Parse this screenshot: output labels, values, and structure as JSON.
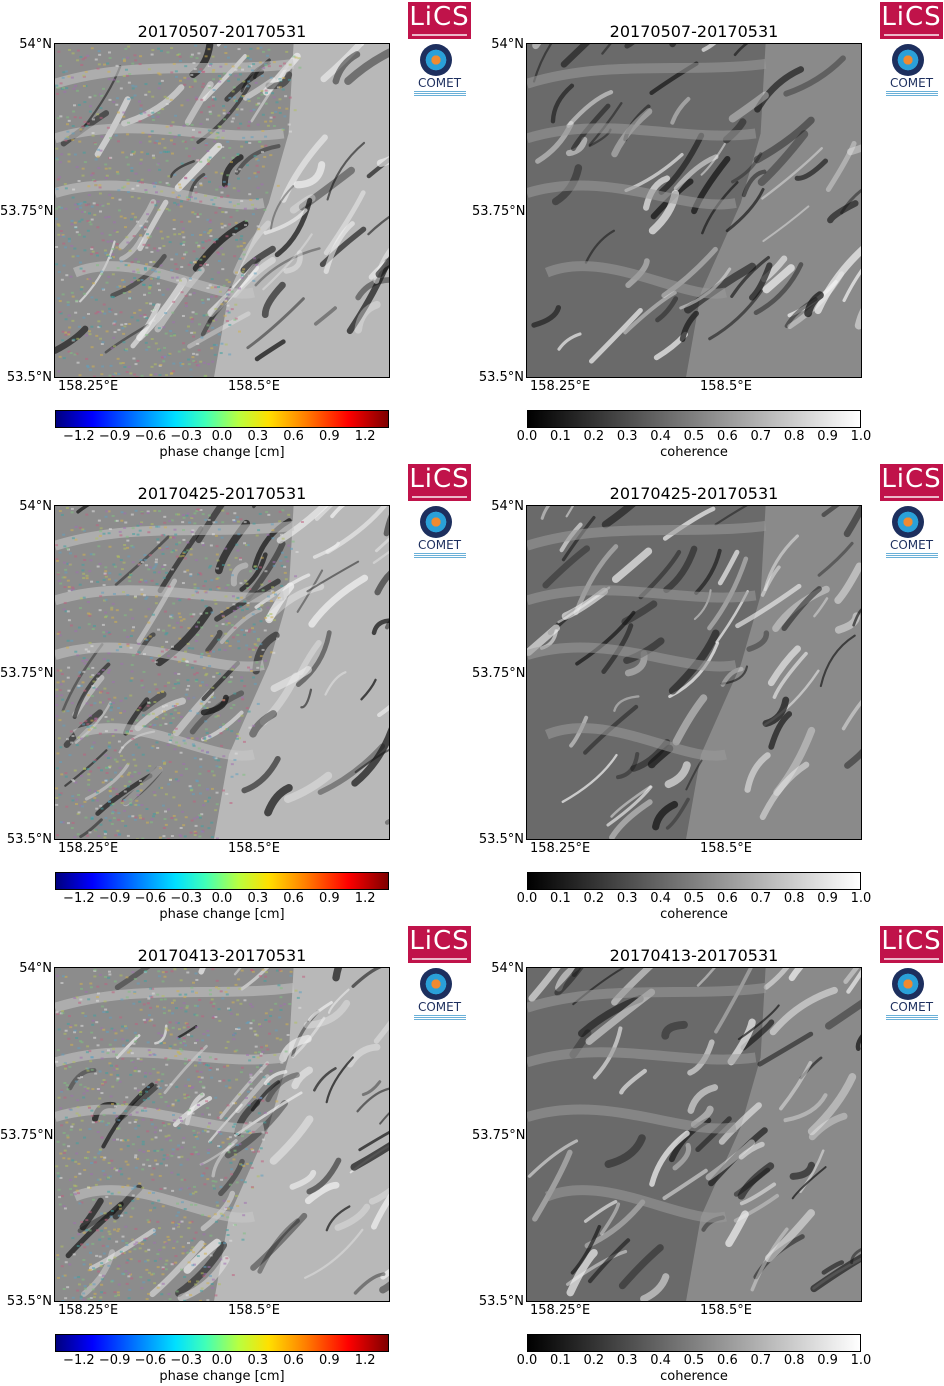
{
  "logos": {
    "lics_text": "LiCS",
    "comet_text": "COMET"
  },
  "lat_labels": [
    "54°N",
    "53.75°N",
    "53.5°N"
  ],
  "lon_labels": [
    "158.25°E",
    "158.5°E"
  ],
  "colorbars": {
    "phase": {
      "label": "phase change [cm]",
      "ticks": [
        "−1.2",
        "−0.9",
        "−0.6",
        "−0.3",
        "0.0",
        "0.3",
        "0.6",
        "0.9",
        "1.2"
      ],
      "range": [
        -1.4,
        1.4
      ]
    },
    "coherence": {
      "label": "coherence",
      "ticks": [
        "0.0",
        "0.1",
        "0.2",
        "0.3",
        "0.4",
        "0.5",
        "0.6",
        "0.7",
        "0.8",
        "0.9",
        "1.0"
      ],
      "range": [
        0,
        1
      ]
    }
  },
  "rows": [
    {
      "title": "20170507-20170531"
    },
    {
      "title": "20170425-20170531"
    },
    {
      "title": "20170413-20170531"
    }
  ],
  "colors": {
    "lics_red": "#c0134a",
    "comet_navy": "#1d2f5e"
  }
}
